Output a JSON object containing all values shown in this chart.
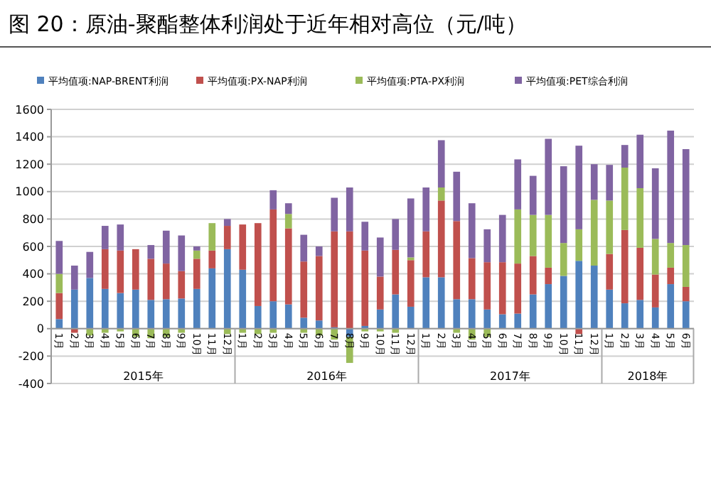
{
  "chart_data": {
    "type": "bar",
    "stacked": true,
    "title": "图 20：原油-聚酯整体利润处于近年相对高位（元/吨）",
    "categories": [
      "1月",
      "2月",
      "3月",
      "4月",
      "5月",
      "6月",
      "7月",
      "8月",
      "9月",
      "10月",
      "11月",
      "12月",
      "1月",
      "2月",
      "3月",
      "4月",
      "5月",
      "6月",
      "7月",
      "8月",
      "9月",
      "10月",
      "11月",
      "12月",
      "1月",
      "2月",
      "3月",
      "4月",
      "5月",
      "6月",
      "7月",
      "8月",
      "9月",
      "10月",
      "11月",
      "12月",
      "1月",
      "2月",
      "3月",
      "4月",
      "5月",
      "6月"
    ],
    "annotations": [
      "2015年",
      "2016年",
      "2017年",
      "2018年"
    ],
    "series": [
      {
        "name": "平均值项:NAP-BRENT利润",
        "color": "#4f81bd",
        "values": [
          70,
          285,
          370,
          290,
          260,
          285,
          210,
          215,
          220,
          290,
          440,
          580,
          430,
          165,
          200,
          177,
          80,
          60,
          10,
          -60,
          20,
          140,
          250,
          160,
          375,
          375,
          215,
          215,
          140,
          105,
          110,
          250,
          325,
          385,
          495,
          460,
          285,
          185,
          210,
          155,
          325,
          200
        ]
      },
      {
        "name": "平均值项:PX-NAP利润",
        "color": "#c0504d",
        "values": [
          190,
          -30,
          0,
          290,
          310,
          295,
          300,
          260,
          200,
          220,
          130,
          170,
          330,
          605,
          670,
          555,
          410,
          470,
          700,
          710,
          550,
          240,
          325,
          340,
          335,
          560,
          570,
          300,
          345,
          380,
          365,
          280,
          120,
          0,
          -40,
          0,
          260,
          535,
          380,
          240,
          120,
          105
        ]
      },
      {
        "name": "平均值项:PTA-PX利润",
        "color": "#9bbb59",
        "values": [
          140,
          0,
          -50,
          -30,
          -20,
          -60,
          -70,
          -60,
          -30,
          60,
          200,
          -40,
          -30,
          -40,
          -30,
          105,
          -30,
          -50,
          -80,
          -190,
          -20,
          -20,
          -30,
          20,
          0,
          95,
          -30,
          -80,
          -60,
          0,
          395,
          300,
          385,
          240,
          230,
          480,
          390,
          455,
          435,
          260,
          180,
          305
        ]
      },
      {
        "name": "平均值项:PET综合利润",
        "color": "#8064a2",
        "values": [
          240,
          175,
          190,
          170,
          190,
          0,
          100,
          240,
          260,
          30,
          0,
          50,
          0,
          0,
          140,
          78,
          195,
          70,
          245,
          320,
          210,
          285,
          225,
          430,
          320,
          345,
          360,
          400,
          240,
          345,
          365,
          285,
          555,
          560,
          610,
          260,
          260,
          165,
          390,
          515,
          820,
          700
        ]
      }
    ],
    "ylim": [
      -400,
      1600
    ],
    "yticks": [
      -400,
      -200,
      0,
      200,
      400,
      600,
      800,
      1000,
      1200,
      1400,
      1600
    ],
    "grid": "y",
    "legend": "top"
  }
}
